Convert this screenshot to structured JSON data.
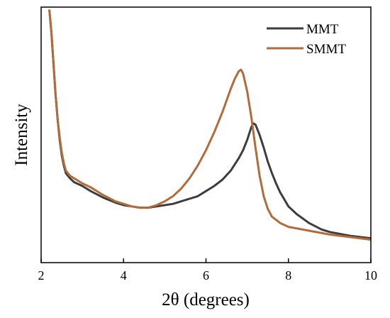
{
  "chart_data": {
    "type": "line",
    "xlabel": "2θ (degrees)",
    "ylabel": "Intensity",
    "xlim": [
      2,
      10
    ],
    "ylim": [
      0,
      1
    ],
    "x_ticks": [
      "2",
      "4",
      "6",
      "8",
      "10"
    ],
    "y_ticks_labeled": false,
    "grid": false,
    "legend_position": "top-right",
    "series": [
      {
        "name": "MMT",
        "color": "#3d3d3d",
        "x": [
          2.2,
          2.25,
          2.3,
          2.35,
          2.4,
          2.45,
          2.5,
          2.55,
          2.6,
          2.7,
          2.8,
          3.0,
          3.2,
          3.5,
          3.8,
          4.0,
          4.2,
          4.4,
          4.6,
          4.8,
          5.0,
          5.2,
          5.4,
          5.6,
          5.8,
          6.0,
          6.2,
          6.4,
          6.6,
          6.8,
          6.9,
          7.0,
          7.1,
          7.15,
          7.2,
          7.3,
          7.4,
          7.5,
          7.6,
          7.7,
          7.8,
          8.0,
          8.2,
          8.5,
          8.8,
          9.0,
          9.5,
          10.0
        ],
        "y": [
          0.99,
          0.9,
          0.78,
          0.66,
          0.56,
          0.48,
          0.42,
          0.38,
          0.35,
          0.33,
          0.315,
          0.3,
          0.28,
          0.255,
          0.235,
          0.225,
          0.22,
          0.215,
          0.215,
          0.22,
          0.225,
          0.23,
          0.24,
          0.25,
          0.26,
          0.28,
          0.3,
          0.325,
          0.36,
          0.41,
          0.44,
          0.48,
          0.53,
          0.545,
          0.54,
          0.5,
          0.45,
          0.395,
          0.35,
          0.31,
          0.275,
          0.22,
          0.19,
          0.155,
          0.13,
          0.12,
          0.105,
          0.095
        ]
      },
      {
        "name": "SMMT",
        "color": "#b36b3a",
        "x": [
          2.2,
          2.25,
          2.3,
          2.35,
          2.4,
          2.45,
          2.5,
          2.55,
          2.6,
          2.7,
          2.8,
          3.0,
          3.2,
          3.5,
          3.8,
          4.0,
          4.2,
          4.4,
          4.6,
          4.8,
          5.0,
          5.2,
          5.4,
          5.6,
          5.8,
          6.0,
          6.2,
          6.4,
          6.5,
          6.6,
          6.7,
          6.8,
          6.85,
          6.9,
          7.0,
          7.1,
          7.2,
          7.3,
          7.4,
          7.5,
          7.6,
          7.8,
          8.0,
          8.5,
          9.0,
          9.5,
          10.0
        ],
        "y": [
          0.99,
          0.9,
          0.78,
          0.66,
          0.56,
          0.49,
          0.43,
          0.39,
          0.36,
          0.34,
          0.33,
          0.31,
          0.295,
          0.265,
          0.24,
          0.23,
          0.22,
          0.215,
          0.215,
          0.225,
          0.24,
          0.26,
          0.29,
          0.33,
          0.38,
          0.44,
          0.51,
          0.59,
          0.635,
          0.68,
          0.72,
          0.75,
          0.755,
          0.74,
          0.67,
          0.57,
          0.45,
          0.34,
          0.26,
          0.21,
          0.18,
          0.155,
          0.14,
          0.125,
          0.11,
          0.1,
          0.09
        ]
      }
    ]
  }
}
